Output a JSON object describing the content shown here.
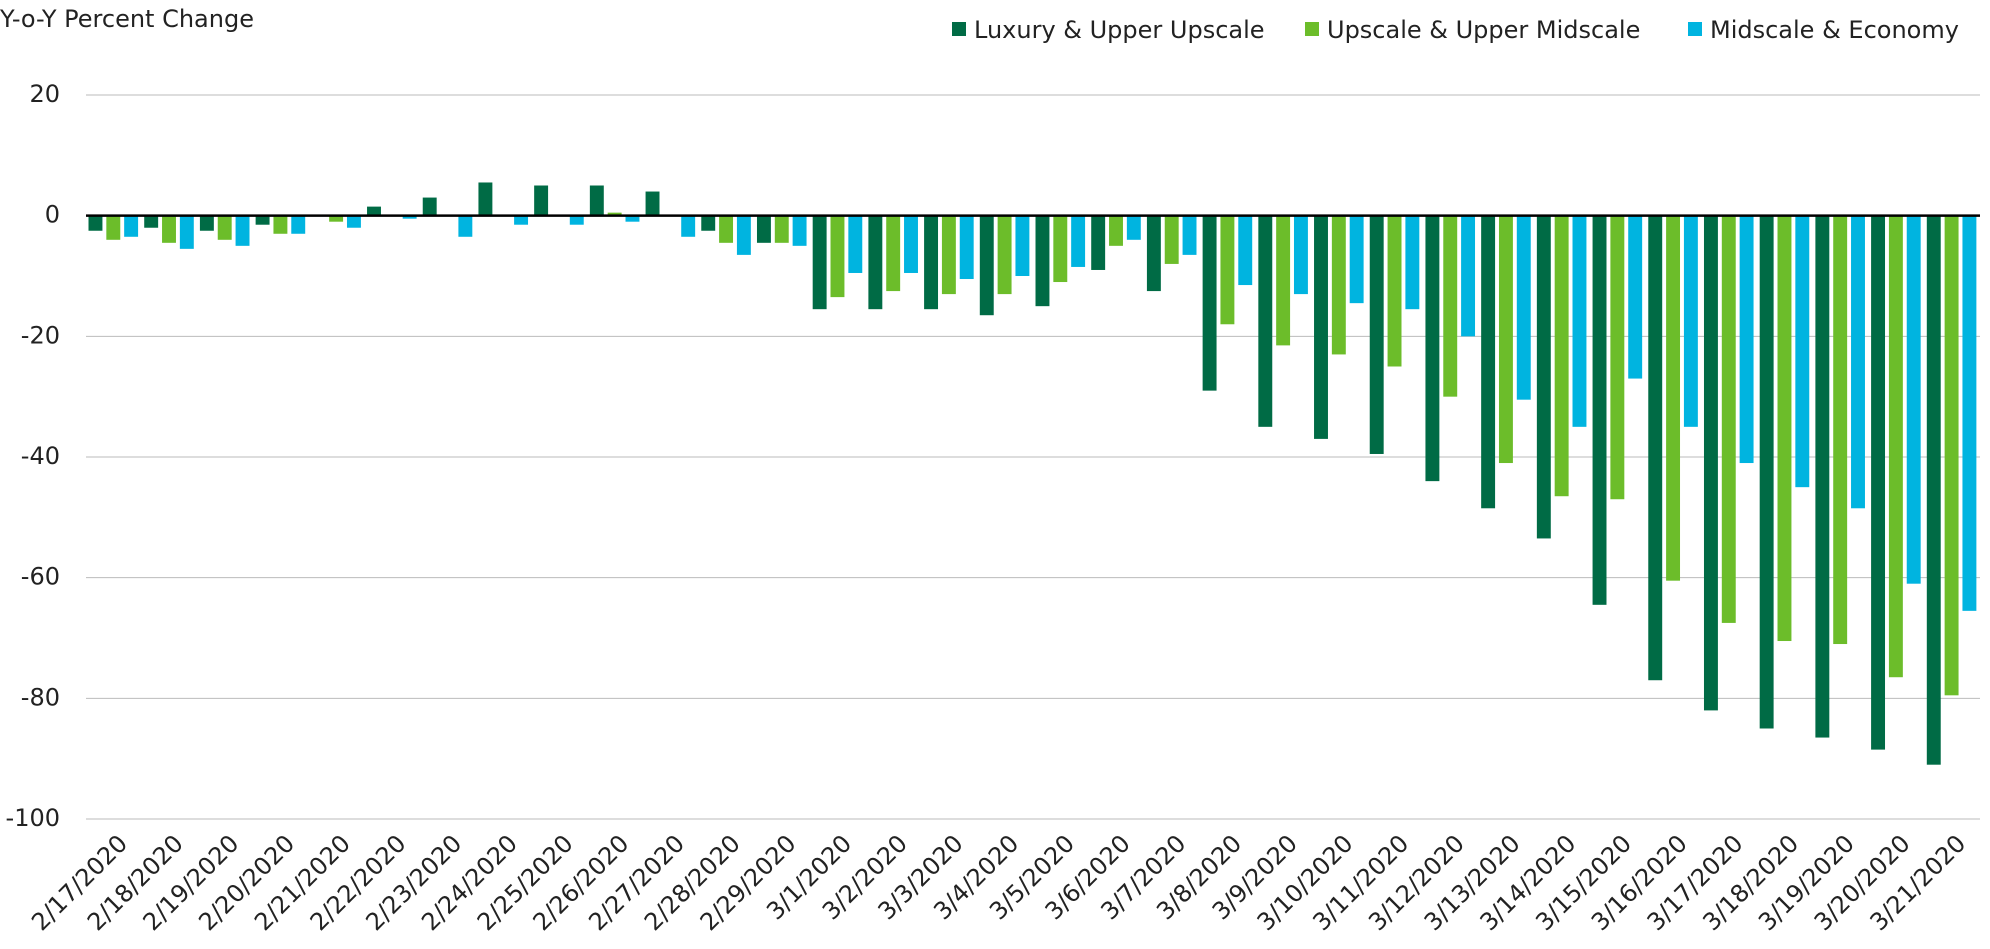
{
  "chart_data": {
    "type": "bar",
    "y_label": "Y-o-Y Percent Change",
    "categories": [
      "2/17/2020",
      "2/18/2020",
      "2/19/2020",
      "2/20/2020",
      "2/21/2020",
      "2/22/2020",
      "2/23/2020",
      "2/24/2020",
      "2/25/2020",
      "2/26/2020",
      "2/27/2020",
      "2/28/2020",
      "2/29/2020",
      "3/1/2020",
      "3/2/2020",
      "3/3/2020",
      "3/4/2020",
      "3/5/2020",
      "3/6/2020",
      "3/7/2020",
      "3/8/2020",
      "3/9/2020",
      "3/10/2020",
      "3/11/2020",
      "3/12/2020",
      "3/13/2020",
      "3/14/2020",
      "3/15/2020",
      "3/16/2020",
      "3/17/2020",
      "3/18/2020",
      "3/19/2020",
      "3/20/2020",
      "3/21/2020"
    ],
    "series": [
      {
        "name": "Luxury & Upper Upscale",
        "color": "#006b45",
        "values": [
          -2.5,
          -2,
          -2.5,
          -1.5,
          0,
          1.5,
          3,
          5.5,
          5,
          5,
          4,
          -2.5,
          -4.5,
          -15.5,
          -15.5,
          -15.5,
          -16.5,
          -15,
          -9,
          -12.5,
          -29,
          -35,
          -37,
          -39.5,
          -44,
          -48.5,
          -53.5,
          -64.5,
          -77,
          -82,
          -85,
          -86.5,
          -88.5,
          -91
        ]
      },
      {
        "name": "Upscale & Upper Midscale",
        "color": "#6cbd2a",
        "values": [
          -4,
          -4.5,
          -4,
          -3,
          -1,
          0,
          0,
          0,
          0,
          0.5,
          0,
          -4.5,
          -4.5,
          -13.5,
          -12.5,
          -13,
          -13,
          -11,
          -5,
          -8,
          -18,
          -21.5,
          -23,
          -25,
          -30,
          -41,
          -46.5,
          -47,
          -60.5,
          -67.5,
          -70.5,
          -71,
          -76.5,
          -79.5
        ]
      },
      {
        "name": "Midscale & Economy",
        "color": "#00b4e0",
        "values": [
          -3.5,
          -5.5,
          -5,
          -3,
          -2,
          -0.5,
          -3.5,
          -1.5,
          -1.5,
          -1,
          -3.5,
          -6.5,
          -5,
          -9.5,
          -9.5,
          -10.5,
          -10,
          -8.5,
          -4,
          -6.5,
          -11.5,
          -13,
          -14.5,
          -15.5,
          -20,
          -30.5,
          -35,
          -27,
          -35,
          -41,
          -45,
          -48.5,
          -61,
          -65.5
        ]
      }
    ],
    "ylim": [
      -100,
      20
    ],
    "yticks": [
      -100,
      -80,
      -60,
      -40,
      -20,
      0,
      20
    ],
    "grid": true,
    "legend": "top-right"
  }
}
